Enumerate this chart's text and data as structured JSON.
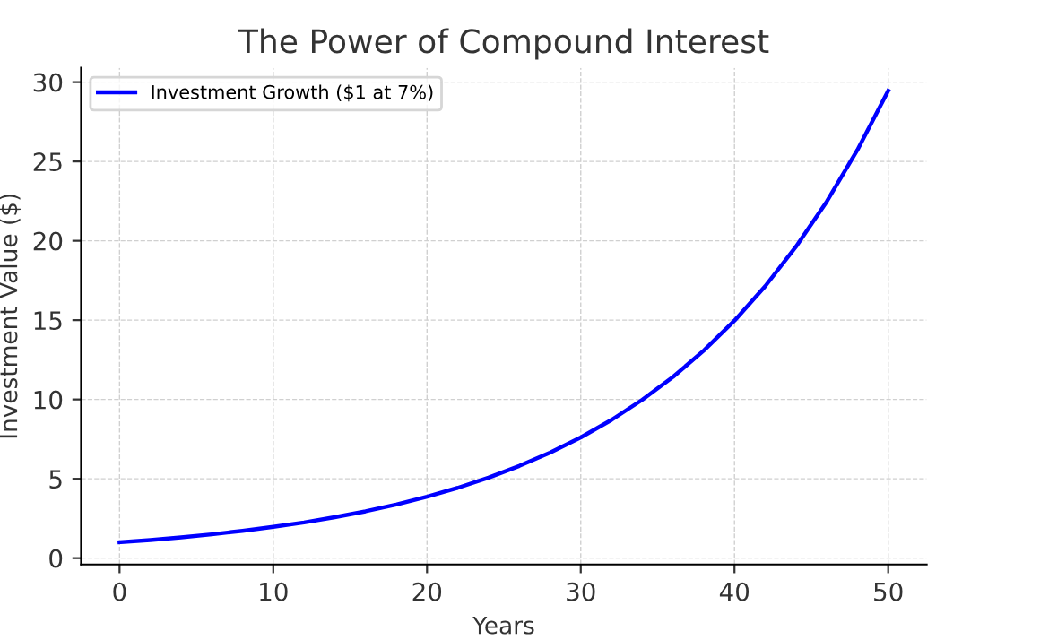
{
  "chart_data": {
    "type": "line",
    "title": "The Power of Compound Interest",
    "xlabel": "Years",
    "ylabel": "Investment Value ($)",
    "x": [
      0,
      2,
      4,
      6,
      8,
      10,
      12,
      14,
      16,
      18,
      20,
      22,
      24,
      26,
      28,
      30,
      32,
      34,
      36,
      38,
      40,
      42,
      44,
      46,
      48,
      50
    ],
    "series": [
      {
        "name": "Investment Growth ($1 at 7%)",
        "color": "#0000ff",
        "values": [
          1.0,
          1.14,
          1.31,
          1.5,
          1.72,
          1.97,
          2.25,
          2.58,
          2.95,
          3.38,
          3.87,
          4.43,
          5.07,
          5.81,
          6.65,
          7.61,
          8.71,
          9.98,
          11.42,
          13.08,
          14.97,
          17.14,
          19.63,
          22.47,
          25.73,
          29.46
        ]
      }
    ],
    "xlim": [
      -2.5,
      52.5
    ],
    "ylim": [
      -0.4,
      30.9
    ],
    "xticks": [
      0,
      10,
      20,
      30,
      40,
      50
    ],
    "yticks": [
      0,
      5,
      10,
      15,
      20,
      25,
      30
    ],
    "grid": true,
    "legend": "top left",
    "marker": "none",
    "line_style": "solid"
  }
}
